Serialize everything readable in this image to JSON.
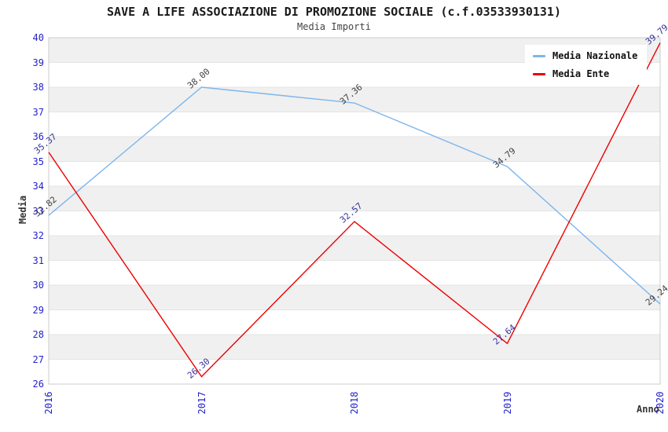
{
  "title": "SAVE A LIFE ASSOCIAZIONE DI PROMOZIONE SOCIALE (c.f.03533930131)",
  "subtitle": "Media Importi",
  "chart_data": {
    "type": "line",
    "categories": [
      "2016",
      "2017",
      "2018",
      "2019",
      "2020"
    ],
    "series": [
      {
        "name": "Media Nazionale",
        "color": "#7cb5ec",
        "label_color": "#404040",
        "values": [
          32.82,
          38.0,
          37.36,
          34.79,
          29.24
        ]
      },
      {
        "name": "Media Ente",
        "color": "#ee0000",
        "label_color": "#333399",
        "values": [
          35.37,
          26.3,
          32.57,
          27.64,
          39.79
        ]
      }
    ],
    "xlabel": "Anno",
    "ylabel": "Media",
    "ylim": [
      26,
      40
    ],
    "ytick_step": 1,
    "grid": true,
    "legend_position": "top-right",
    "colors": {
      "tick_label": "#2222cc",
      "band": "#f0f0f0",
      "gridline": "#e4e4e4",
      "plot_border": "#cccccc"
    }
  }
}
